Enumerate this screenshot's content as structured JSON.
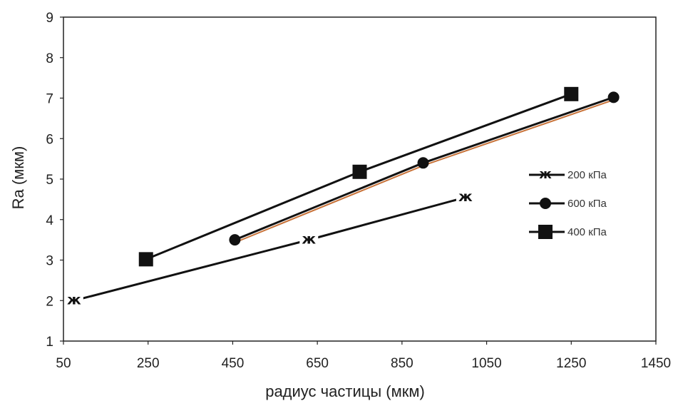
{
  "chart_data": {
    "type": "line",
    "xlabel": "радиус частицы (мкм)",
    "ylabel": "Ra (мкм)",
    "xlim": [
      50,
      1450
    ],
    "ylim": [
      1,
      9
    ],
    "x_ticks": [
      "50",
      "250",
      "450",
      "650",
      "850",
      "1050",
      "1250",
      "1450"
    ],
    "y_ticks": [
      "1",
      "2",
      "3",
      "4",
      "5",
      "6",
      "7",
      "8",
      "9"
    ],
    "grid": false,
    "legend_position": "right",
    "series": [
      {
        "name": "200 кПа",
        "marker": "ж",
        "color": "#111111",
        "points": [
          [
            75,
            2.0
          ],
          [
            630,
            3.5
          ],
          [
            1000,
            4.55
          ]
        ]
      },
      {
        "name": "600 кПа",
        "marker": "circle",
        "color": "#111111",
        "accent_color": "#c8733a",
        "points": [
          [
            455,
            3.5
          ],
          [
            900,
            5.4
          ],
          [
            1350,
            7.02
          ]
        ]
      },
      {
        "name": "400 кПа",
        "marker": "square",
        "color": "#111111",
        "points": [
          [
            245,
            3.02
          ],
          [
            750,
            5.18
          ],
          [
            1250,
            7.1
          ]
        ]
      }
    ]
  }
}
